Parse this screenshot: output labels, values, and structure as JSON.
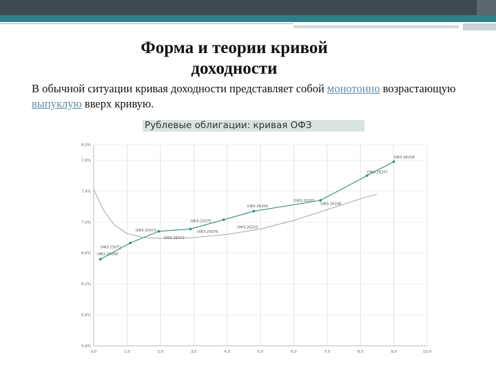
{
  "slide": {
    "title_line1": "Форма и теории кривой",
    "title_line2": "доходности",
    "body_text_before": "В обычной ситуации кривая доходности представляет собой ",
    "body_link1": "монотонно",
    "body_text_middle": " возрастающую ",
    "body_link2": "выпуклую",
    "body_text_after": " вверх кривую.",
    "link_color": "#5f8bab",
    "accent_teal": "#2f7f8a"
  },
  "chart_data": {
    "type": "scatter",
    "title": "Рублевые облигации: кривая ОФЗ",
    "xlabel": "",
    "ylabel": "",
    "xlim": [
      0,
      10
    ],
    "ylim": [
      5.4,
      8.0
    ],
    "x_ticks": [
      0,
      1,
      2,
      3,
      4,
      5,
      6,
      7,
      8,
      9,
      10
    ],
    "x_tick_labels": [
      "0,0",
      "1,0",
      "2,0",
      "3,0",
      "4,0",
      "5,0",
      "6,0",
      "7,0",
      "8,0",
      "9,0",
      "10,0"
    ],
    "y_ticks": [
      5.4,
      5.8,
      6.2,
      6.6,
      7.0,
      7.4,
      7.8,
      8.0
    ],
    "y_tick_labels": [
      "5,4%",
      "5,8%",
      "6,2%",
      "6,6%",
      "7,0%",
      "7,4%",
      "7,8%",
      "8,0%"
    ],
    "grid": true,
    "series": [
      {
        "name": "",
        "color": "#2e8b7e",
        "marker": true,
        "x": [
          0.2,
          1.1,
          1.95,
          2.9,
          3.9,
          4.8,
          6.8,
          8.2,
          9.0
        ],
        "y": [
          6.52,
          6.73,
          6.88,
          6.91,
          7.03,
          7.14,
          7.28,
          7.6,
          7.78
        ]
      },
      {
        "name": "",
        "color": "#9a9a9a",
        "marker": false,
        "x": [
          0.0,
          0.3,
          0.6,
          1.0,
          1.5,
          2.0,
          2.5,
          3.0,
          4.0,
          5.0,
          6.0,
          7.0,
          8.0,
          8.5
        ],
        "y": [
          7.42,
          7.15,
          6.97,
          6.85,
          6.8,
          6.79,
          6.79,
          6.8,
          6.84,
          6.91,
          7.02,
          7.16,
          7.3,
          7.36
        ]
      }
    ],
    "annotations": [
      {
        "text": "ОФЗ-25071",
        "x": 0.2,
        "y": 6.66
      },
      {
        "text": "ОФЗ-25068",
        "x": 0.1,
        "y": 6.57
      },
      {
        "text": "ОФЗ-25073",
        "x": 1.25,
        "y": 6.88
      },
      {
        "text": "ОФЗ-25072",
        "x": 2.1,
        "y": 6.78
      },
      {
        "text": "ОФЗ-25075",
        "x": 2.9,
        "y": 7.0
      },
      {
        "text": "ОФЗ-25076",
        "x": 3.1,
        "y": 6.86
      },
      {
        "text": "ОФЗ-26203",
        "x": 4.3,
        "y": 6.92
      },
      {
        "text": "ОФЗ-26204",
        "x": 4.6,
        "y": 7.19
      },
      {
        "text": "ОФЗ-26205",
        "x": 6.0,
        "y": 7.26
      },
      {
        "text": "ОФЗ-26206",
        "x": 6.8,
        "y": 7.22
      },
      {
        "text": "ОФЗ-26207",
        "x": 8.2,
        "y": 7.63
      },
      {
        "text": "ОФЗ-26208",
        "x": 9.0,
        "y": 7.82
      }
    ]
  }
}
